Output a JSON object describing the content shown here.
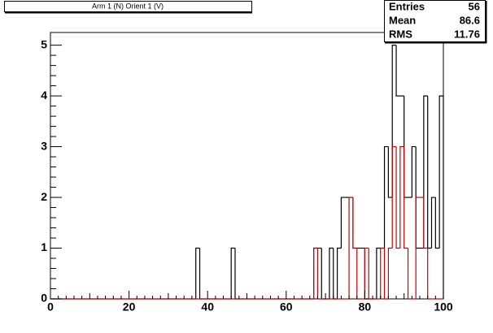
{
  "chart_data": {
    "type": "histogram",
    "title": "Arm 1 (N) Orient 1 (V)",
    "bins": [
      0,
      1,
      2,
      3,
      4,
      5,
      6,
      7,
      8,
      9,
      10,
      11,
      12,
      13,
      14,
      15,
      16,
      17,
      18,
      19,
      20,
      21,
      22,
      23,
      24,
      25,
      26,
      27,
      28,
      29,
      30,
      31,
      32,
      33,
      34,
      35,
      36,
      37,
      38,
      39,
      40,
      41,
      42,
      43,
      44,
      45,
      46,
      47,
      48,
      49,
      50,
      51,
      52,
      53,
      54,
      55,
      56,
      57,
      58,
      59,
      60,
      61,
      62,
      63,
      64,
      65,
      66,
      67,
      68,
      69,
      70,
      71,
      72,
      73,
      74,
      75,
      76,
      77,
      78,
      79,
      80,
      81,
      82,
      83,
      84,
      85,
      86,
      87,
      88,
      89,
      90,
      91,
      92,
      93,
      94,
      95,
      96,
      97,
      98,
      99,
      100
    ],
    "series": [
      {
        "color": "#000000",
        "values": [
          0,
          0,
          0,
          0,
          0,
          0,
          0,
          0,
          0,
          0,
          0,
          0,
          0,
          0,
          0,
          0,
          0,
          0,
          0,
          0,
          0,
          0,
          0,
          0,
          0,
          0,
          0,
          0,
          0,
          0,
          0,
          0,
          0,
          0,
          0,
          0,
          0,
          1,
          0,
          0,
          0,
          0,
          0,
          0,
          0,
          0,
          1,
          0,
          0,
          0,
          0,
          0,
          0,
          0,
          0,
          0,
          0,
          0,
          0,
          0,
          0,
          0,
          0,
          0,
          0,
          0,
          0,
          1,
          1,
          0,
          0,
          1,
          0,
          1,
          2,
          2,
          2,
          1,
          1,
          1,
          0,
          0,
          0,
          1,
          1,
          3,
          2,
          5,
          4,
          4,
          2,
          2,
          3,
          1,
          1,
          4,
          1,
          2,
          1,
          4
        ]
      },
      {
        "color": "#cc0000",
        "values": [
          0,
          0,
          0,
          0,
          0,
          0,
          0,
          0,
          0,
          0,
          0,
          0,
          0,
          0,
          0,
          0,
          0,
          0,
          0,
          0,
          0,
          0,
          0,
          0,
          0,
          0,
          0,
          0,
          0,
          0,
          0,
          0,
          0,
          0,
          0,
          0,
          0,
          0,
          0,
          0,
          0,
          0,
          0,
          0,
          0,
          0,
          0,
          0,
          0,
          0,
          0,
          0,
          0,
          0,
          0,
          0,
          0,
          0,
          0,
          0,
          0,
          0,
          0,
          0,
          0,
          0,
          0,
          1,
          0,
          0,
          0,
          0,
          0,
          0,
          0,
          0,
          2,
          1,
          0,
          0,
          1,
          0,
          0,
          0,
          1,
          0,
          1,
          3,
          1,
          3,
          1,
          0,
          0,
          2,
          2,
          1,
          0,
          0,
          0,
          0
        ]
      }
    ],
    "xlim": [
      0,
      100
    ],
    "xticks": [
      0,
      20,
      40,
      60,
      80,
      100
    ],
    "ylim": [
      0,
      5.25
    ],
    "yticks": [
      0,
      1,
      2,
      3,
      4,
      5
    ],
    "stats": [
      {
        "label": "Entries",
        "value": 56
      },
      {
        "label": "Mean",
        "value": 86.6
      },
      {
        "label": "RMS",
        "value": 11.76
      }
    ]
  }
}
